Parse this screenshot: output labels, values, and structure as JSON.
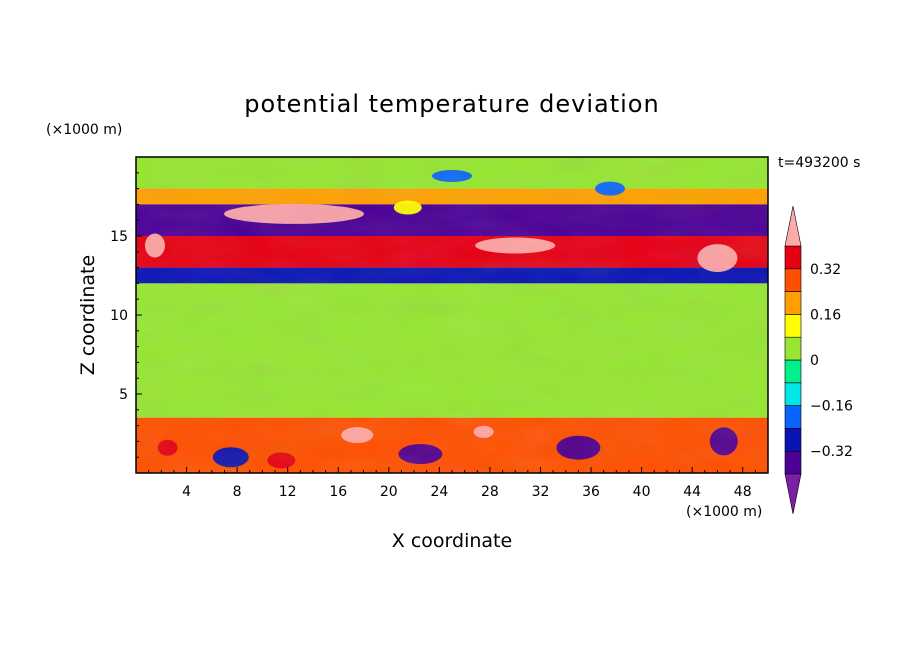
{
  "chart_data": {
    "type": "heatmap",
    "title": "potential temperature deviation",
    "xlabel": "X coordinate",
    "ylabel": "Z coordinate",
    "x_unit": "(×1000 m)",
    "y_unit": "(×1000 m)",
    "time_label": "t=493200 s",
    "xlim": [
      0,
      50
    ],
    "ylim": [
      0,
      20
    ],
    "x_ticks": [
      4,
      8,
      12,
      16,
      20,
      24,
      28,
      32,
      36,
      40,
      44,
      48
    ],
    "y_ticks": [
      5,
      10,
      15
    ],
    "colorbar": {
      "levels": [
        -0.4,
        -0.32,
        -0.24,
        -0.16,
        -0.08,
        0,
        0.08,
        0.16,
        0.24,
        0.32,
        0.4
      ],
      "tick_labels": [
        "0.32",
        "0.16",
        "0",
        "−0.16",
        "−0.32"
      ],
      "tick_values": [
        0.32,
        0.16,
        0,
        -0.16,
        -0.32
      ],
      "colors": [
        "#7a1fa6",
        "#4b0096",
        "#0a14b4",
        "#0a64ff",
        "#00e6e6",
        "#00f08c",
        "#96e632",
        "#ffff00",
        "#ffa000",
        "#ff5000",
        "#e60014",
        "#ffaaaa"
      ]
    },
    "bands": [
      {
        "z": [
          18.0,
          20.0
        ],
        "value": 0.0
      },
      {
        "z": [
          17.0,
          18.0
        ],
        "value": 0.2
      },
      {
        "z": [
          15.0,
          17.0
        ],
        "value": -0.35
      },
      {
        "z": [
          13.0,
          15.0
        ],
        "value": 0.35
      },
      {
        "z": [
          12.0,
          13.0
        ],
        "value": -0.3
      },
      {
        "z": [
          3.5,
          12.0
        ],
        "value": 0.02
      },
      {
        "z": [
          0,
          3.5
        ],
        "value": 0.3
      }
    ]
  }
}
